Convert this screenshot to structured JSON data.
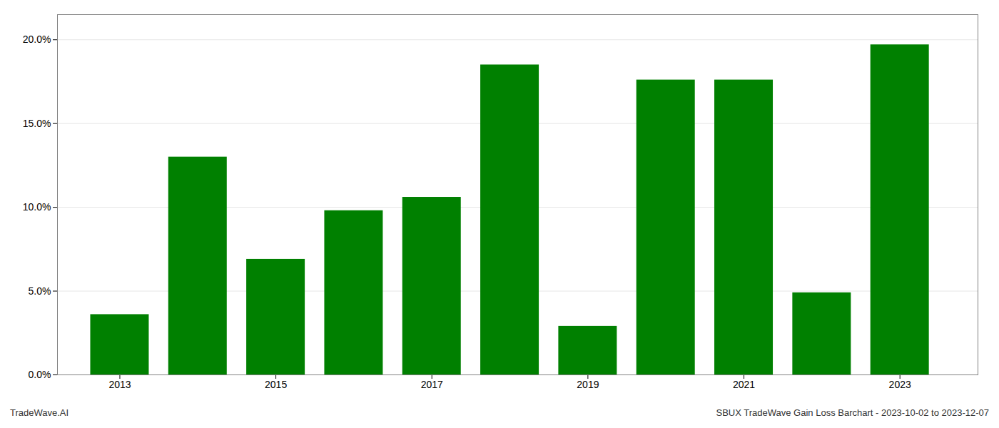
{
  "chart_data": {
    "type": "bar",
    "x": [
      2013,
      2014,
      2015,
      2016,
      2017,
      2018,
      2019,
      2020,
      2021,
      2022,
      2023
    ],
    "values": [
      0.036,
      0.13,
      0.069,
      0.098,
      0.106,
      0.185,
      0.029,
      0.176,
      0.176,
      0.049,
      0.197
    ],
    "color": "#008000",
    "xlim": [
      2012.2,
      2024.0
    ],
    "xticks": [
      2013,
      2015,
      2017,
      2019,
      2021,
      2023
    ],
    "ylim": [
      0,
      0.215
    ],
    "yticks": [
      {
        "value": 0.0,
        "label": "0.0%"
      },
      {
        "value": 0.05,
        "label": "5.0%"
      },
      {
        "value": 0.1,
        "label": "10.0%"
      },
      {
        "value": 0.15,
        "label": "15.0%"
      },
      {
        "value": 0.2,
        "label": "20.0%"
      }
    ],
    "grid": true,
    "annotations": [
      "TradeWave.AI",
      "SBUX TradeWave Gain Loss Barchart - 2023-10-02 to 2023-12-07"
    ]
  }
}
